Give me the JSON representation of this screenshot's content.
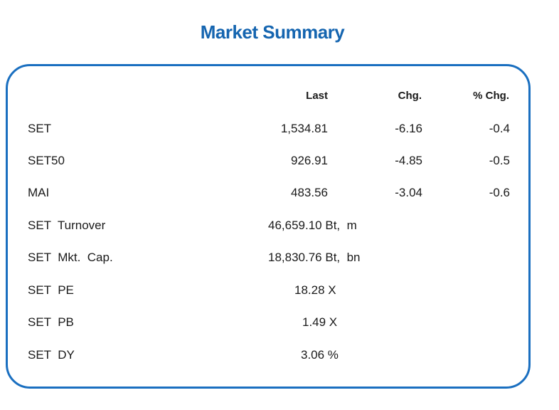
{
  "title": "Market Summary",
  "headers": {
    "last": "Last",
    "chg": "Chg.",
    "pct_chg": "% Chg."
  },
  "indices": [
    {
      "label": "SET",
      "last": "1,534.81",
      "chg": "-6.16",
      "pct_chg": "-0.4"
    },
    {
      "label": "SET50",
      "last": "926.91",
      "chg": "-4.85",
      "pct_chg": "-0.5"
    },
    {
      "label": "MAI",
      "last": "483.56",
      "chg": "-3.04",
      "pct_chg": "-0.6"
    }
  ],
  "stats": [
    {
      "label": "SET  Turnover",
      "value": "46,659.10 Bt,  m"
    },
    {
      "label": "SET  Mkt.  Cap.",
      "value": "18,830.76 Bt,  bn"
    },
    {
      "label": "SET  PE",
      "value": "18.28 X"
    },
    {
      "label": "SET  PB",
      "value": "1.49 X"
    },
    {
      "label": "SET  DY",
      "value": "3.06 %"
    }
  ],
  "colors": {
    "accent": "#1565b0",
    "border": "#1a6fc0"
  }
}
